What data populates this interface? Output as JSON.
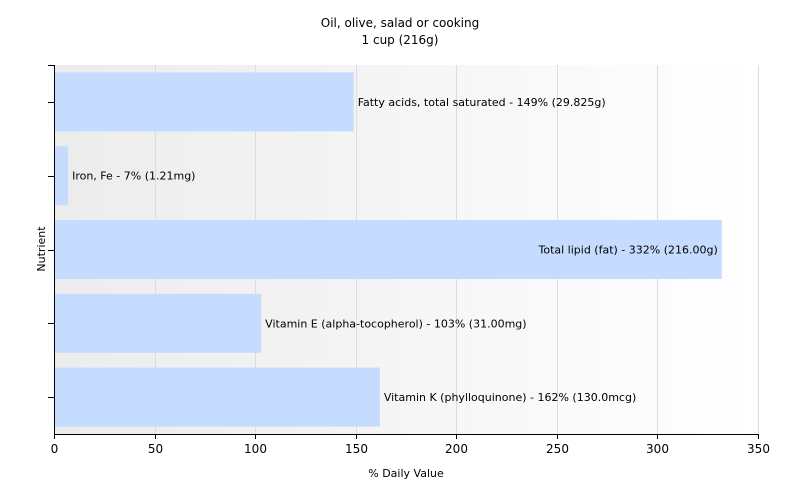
{
  "chart_data": {
    "type": "bar",
    "orientation": "horizontal",
    "title": "Oil, olive, salad or cooking",
    "subtitle": "1 cup (216g)",
    "xlabel": "% Daily Value",
    "ylabel": "Nutrient",
    "xlim": [
      0,
      350
    ],
    "xticks": [
      0,
      50,
      100,
      150,
      200,
      250,
      300,
      350
    ],
    "grid": true,
    "bar_color": "#c6dcff",
    "categories": [
      "Fatty acids, total saturated",
      "Iron, Fe",
      "Total lipid (fat)",
      "Vitamin E (alpha-tocopherol)",
      "Vitamin K (phylloquinone)"
    ],
    "values": [
      149,
      7,
      332,
      103,
      162
    ],
    "labels": [
      "Fatty acids, total saturated - 149% (29.825g)",
      "Iron, Fe - 7% (1.21mg)",
      "Total lipid (fat) - 332% (216.00g)",
      "Vitamin E (alpha-tocopherol) - 103% (31.00mg)",
      "Vitamin K (phylloquinone) - 162% (130.0mcg)"
    ]
  }
}
